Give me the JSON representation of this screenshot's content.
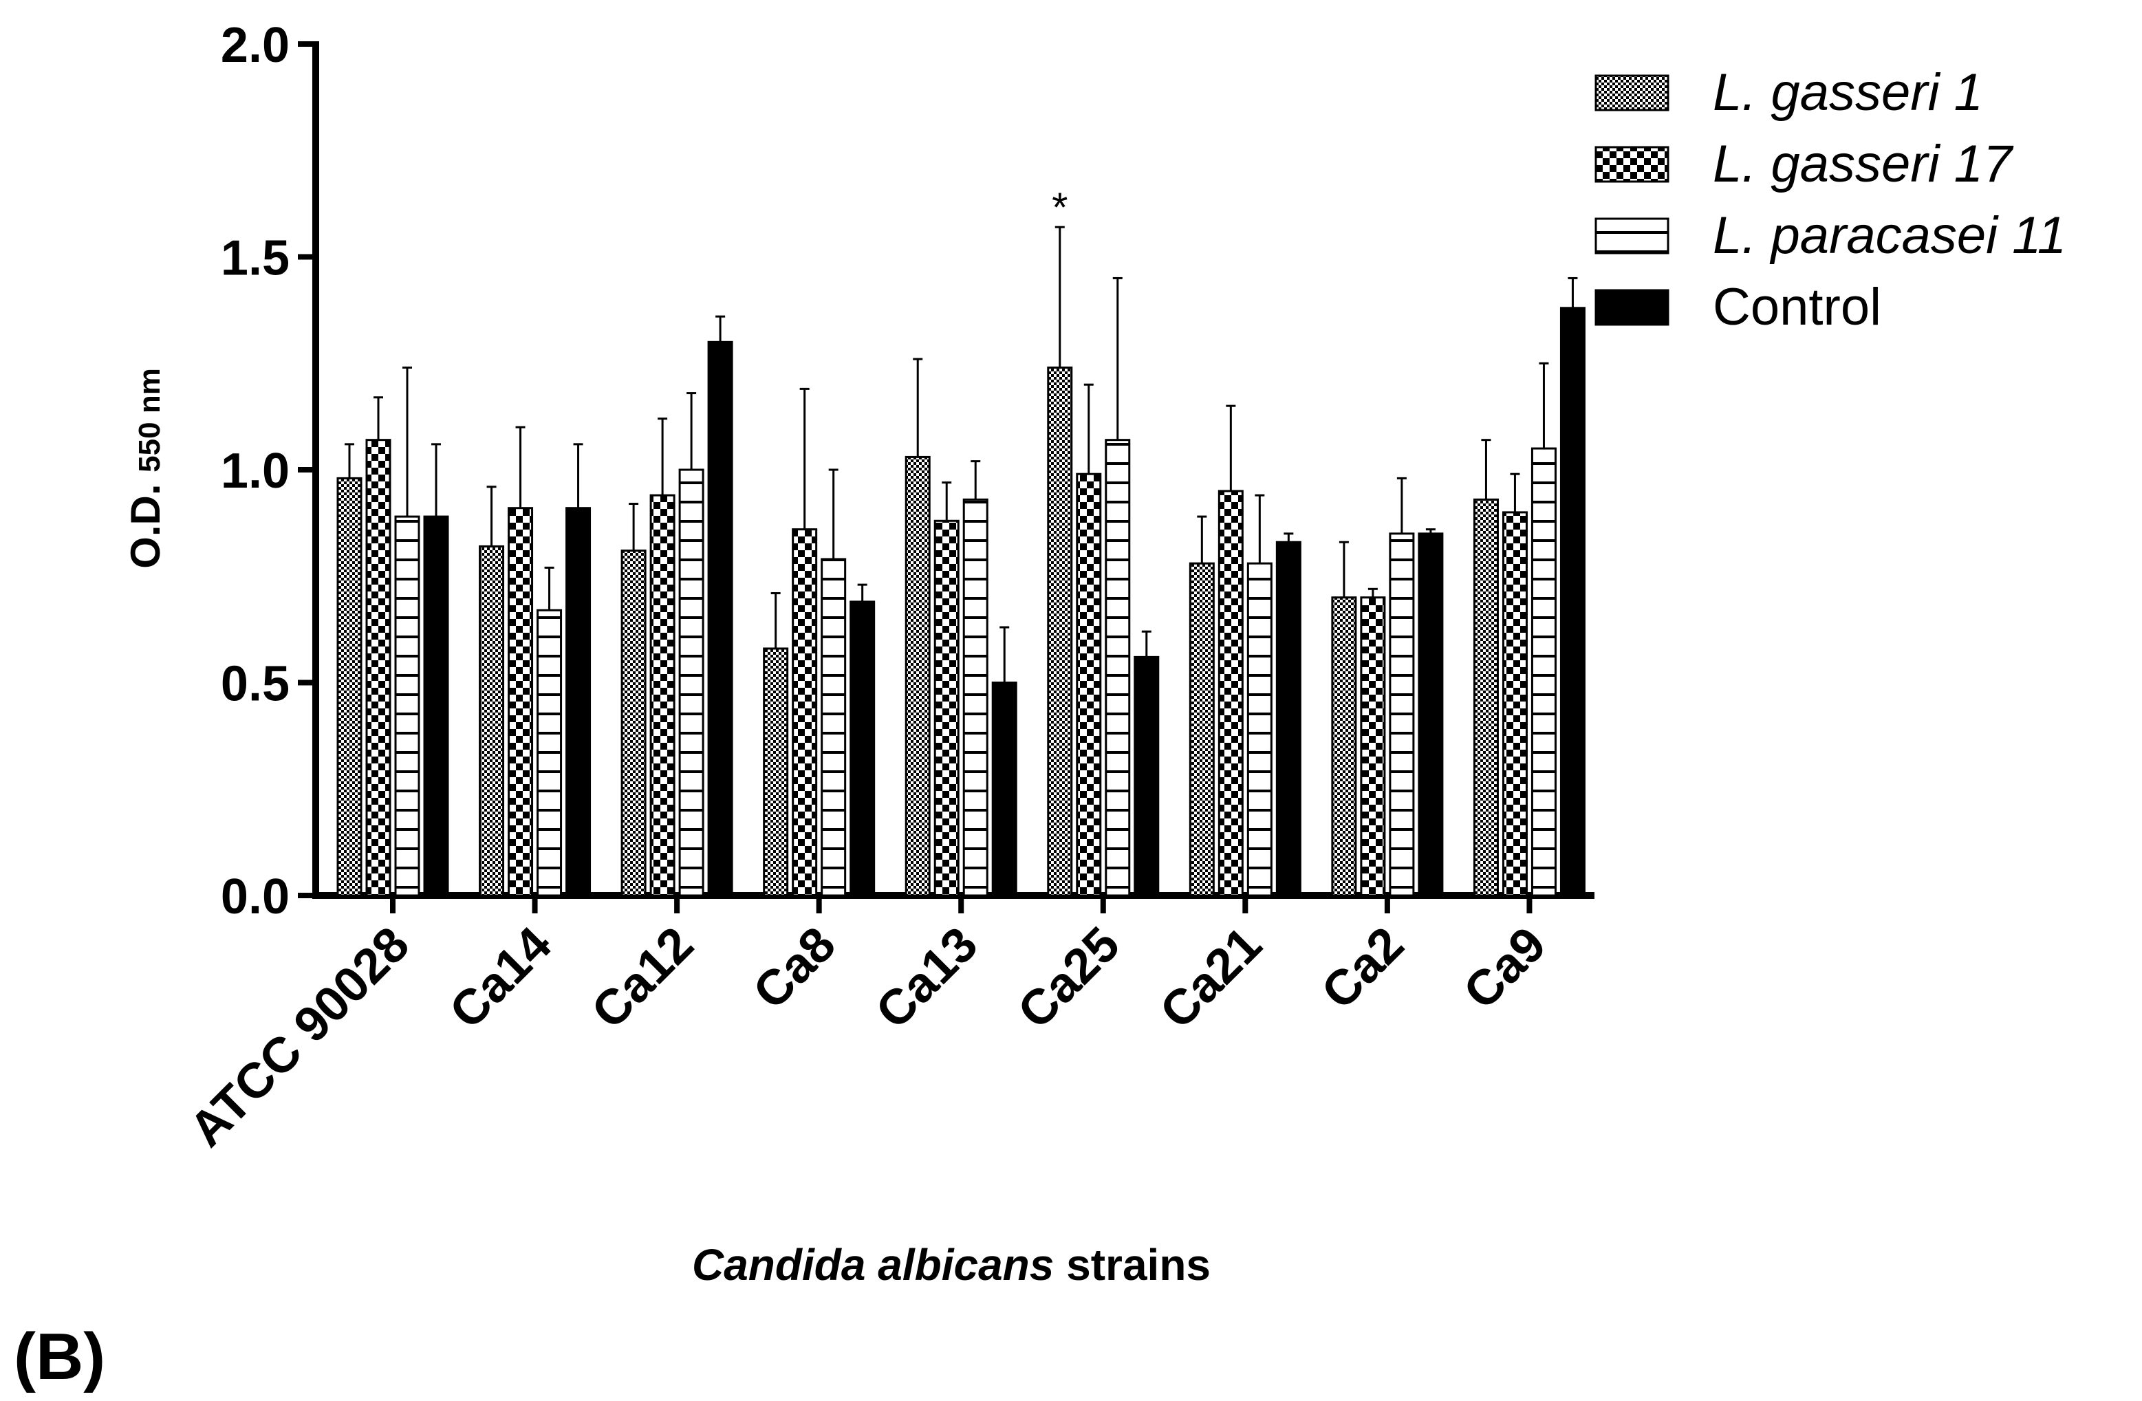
{
  "chart_data": {
    "type": "bar",
    "title": "",
    "panel_label": "(B)",
    "ylabel": "O.D.",
    "ylabel_sub": "550 nm",
    "xlabel_italic": "Candida albicans",
    "xlabel_rest": " strains",
    "ylim": [
      0,
      2.0
    ],
    "yticks": [
      "0.0",
      "0.5",
      "1.0",
      "1.5",
      "2.0"
    ],
    "categories": [
      "ATCC 90028",
      "Ca14",
      "Ca12",
      "Ca8",
      "Ca13",
      "Ca25",
      "Ca21",
      "Ca2",
      "Ca9"
    ],
    "series": [
      {
        "name": "L. gasseri 1",
        "pattern": "fine-check",
        "values": [
          0.98,
          0.82,
          0.81,
          0.58,
          1.03,
          1.24,
          0.78,
          0.7,
          0.93
        ],
        "errors": [
          0.08,
          0.14,
          0.11,
          0.13,
          0.23,
          0.33,
          0.11,
          0.13,
          0.14
        ]
      },
      {
        "name": "L. gasseri 17",
        "pattern": "checker",
        "values": [
          1.07,
          0.91,
          0.94,
          0.86,
          0.88,
          0.99,
          0.95,
          0.7,
          0.9
        ],
        "errors": [
          0.1,
          0.19,
          0.18,
          0.33,
          0.09,
          0.21,
          0.2,
          0.02,
          0.09
        ]
      },
      {
        "name": "L. paracasei 11",
        "pattern": "horizontal",
        "values": [
          0.89,
          0.67,
          1.0,
          0.79,
          0.93,
          1.07,
          0.78,
          0.85,
          1.05
        ],
        "errors": [
          0.35,
          0.1,
          0.18,
          0.21,
          0.09,
          0.38,
          0.16,
          0.13,
          0.2
        ]
      },
      {
        "name": "Control",
        "pattern": "solid",
        "values": [
          0.89,
          0.91,
          1.3,
          0.69,
          0.5,
          0.56,
          0.83,
          0.85,
          1.38
        ],
        "errors": [
          0.17,
          0.15,
          0.06,
          0.04,
          0.13,
          0.06,
          0.02,
          0.01,
          0.07
        ]
      }
    ],
    "annotations": [
      {
        "category": "Ca25",
        "series": "L. gasseri 1",
        "text": "*"
      }
    ],
    "legend_position": "top-right"
  }
}
